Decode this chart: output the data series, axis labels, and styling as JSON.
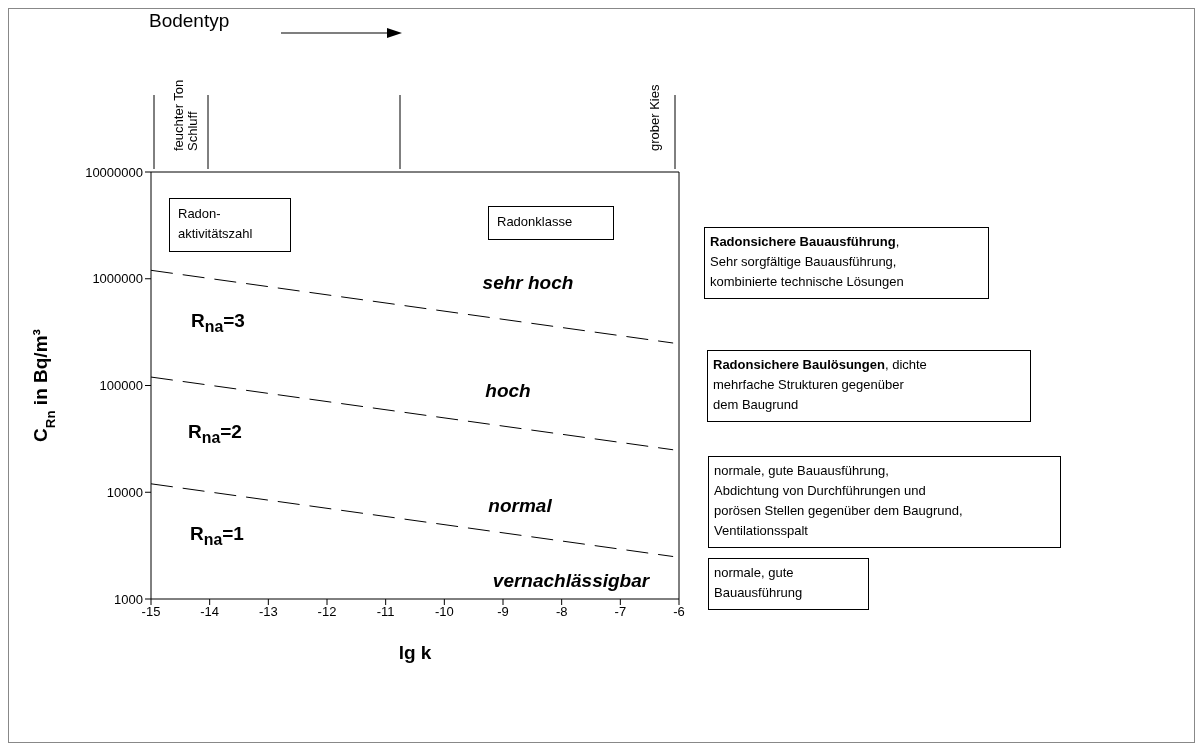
{
  "chart_data": {
    "type": "line",
    "xlabel": "lg k",
    "ylabel": "C$_{Rn}$ in Bq/m³",
    "xlim": [
      -15,
      -6
    ],
    "xticks": [
      -15,
      -14,
      -13,
      -12,
      -11,
      -10,
      -9,
      -8,
      -7,
      -6
    ],
    "ylim": [
      1000,
      10000000
    ],
    "yticks": [
      1000,
      10000,
      100000,
      1000000,
      10000000
    ],
    "log": true,
    "x": [
      -15,
      -6.1
    ],
    "series": [
      {
        "color": "#000000",
        "line_style": "dashed",
        "values": [
          1200000,
          250000
        ]
      },
      {
        "color": "#000000",
        "line_style": "dashed",
        "values": [
          120000,
          25000
        ]
      },
      {
        "color": "#000000",
        "line_style": "dashed",
        "values": [
          12000,
          2500
        ]
      }
    ],
    "marker": "none",
    "grid": false,
    "legend": false,
    "annotations": [
      "Bodentyp",
      "feuchter Ton",
      "Schluff",
      "grober Kies",
      "Radon-\naktivitätszahl",
      "Radonklasse",
      "sehr hoch",
      "R$_{na}$=3",
      "hoch",
      "R$_{na}$=2",
      "normal",
      "R$_{na}$=1",
      "vernachlässigbar",
      "Radonsichere Bauausführung,\nSehr sorgfältige Bauausführung,\nkombinierte technische Lösungen",
      "Radonsichere Baulösungen, dichte\nmehrfache Strukturen gegenüber\ndem Baugrund",
      "normale, gute Bauausführung,\nAbdichtung von Durchführungen und\nporösen Stellen gegenüber dem Baugrund,\nVentilationsspalt",
      "normale, gute\nBauausführung"
    ]
  }
}
